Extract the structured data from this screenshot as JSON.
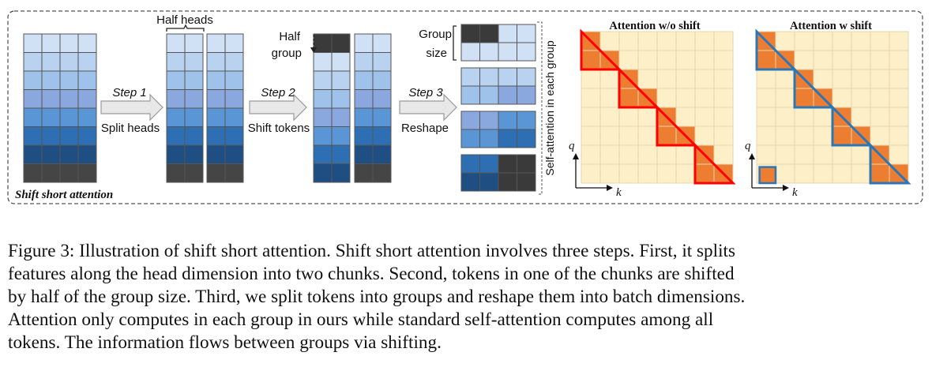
{
  "figure": {
    "panel_label": "Shift short attention",
    "labels": {
      "half_heads": "Half heads",
      "half": "Half",
      "group": "group",
      "group_label": "Group",
      "size_label": "size",
      "self_attention": "Self-attention in each group",
      "attn_no_shift": "Attention w/o shift",
      "attn_shift": "Attention w shift",
      "q": "q",
      "k": "k"
    },
    "steps": [
      {
        "name": "Step 1",
        "desc": "Split heads"
      },
      {
        "name": "Step 2",
        "desc": "Shift tokens"
      },
      {
        "name": "Step 3",
        "desc": "Reshape"
      }
    ],
    "colors": {
      "row_shades": [
        "#d0e0f5",
        "#b8d2ef",
        "#9fc2ea",
        "#8aa8de",
        "#5a96d6",
        "#2e6fb4",
        "#1f4e82",
        "#454545"
      ],
      "dark": "#3a3a3a",
      "matrix_bg": "#fdefc7",
      "matrix_grid": "#e3d7b0",
      "filled": "#ed7d31",
      "red": "#ff0000",
      "blue": "#2e75b6",
      "border": "#555555"
    },
    "icons": [
      "right-arrow-icon",
      "down-arrow-icon",
      "brace-icon"
    ]
  },
  "caption": {
    "lines": [
      "Figure 3: Illustration of shift short attention. Shift short attention involves three steps. First, it splits",
      "features along the head dimension into two chunks. Second, tokens in one of the chunks are shifted",
      "by half of the group size. Third, we split tokens into groups and reshape them into batch dimensions.",
      "Attention only computes in each group in ours while standard self-attention computes among all",
      "tokens. The information flows between groups via shifting."
    ]
  }
}
